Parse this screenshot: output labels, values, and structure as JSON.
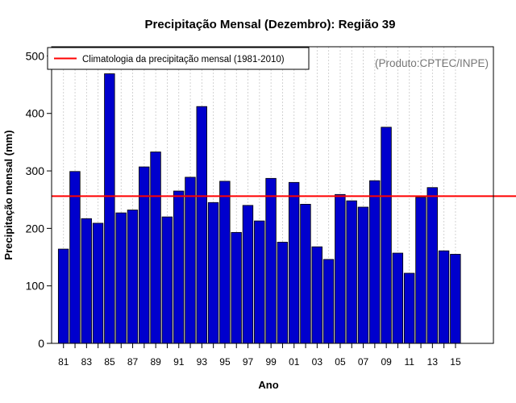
{
  "chart_data": {
    "type": "bar",
    "title": "Precipitação Mensal (Dezembro): Região 39",
    "xlabel": "Ano",
    "ylabel": "Precipitação mensal (mm)",
    "ylim": [
      0,
      500
    ],
    "y_ticks": [
      0,
      100,
      200,
      300,
      400,
      500
    ],
    "categories": [
      "81",
      "82",
      "83",
      "84",
      "85",
      "86",
      "87",
      "88",
      "89",
      "90",
      "91",
      "92",
      "93",
      "94",
      "95",
      "96",
      "97",
      "98",
      "99",
      "00",
      "01",
      "02",
      "03",
      "04",
      "05",
      "06",
      "07",
      "08",
      "09",
      "10",
      "11",
      "12",
      "13",
      "14",
      "15"
    ],
    "x_tick_labels": [
      "81",
      "83",
      "85",
      "87",
      "89",
      "91",
      "93",
      "95",
      "97",
      "99",
      "01",
      "03",
      "05",
      "07",
      "09",
      "11",
      "13",
      "15"
    ],
    "values": [
      164,
      299,
      217,
      209,
      469,
      227,
      232,
      307,
      333,
      220,
      265,
      289,
      412,
      245,
      282,
      193,
      240,
      213,
      287,
      176,
      280,
      242,
      168,
      146,
      259,
      248,
      237,
      283,
      376,
      157,
      122,
      254,
      271,
      161,
      155
    ],
    "climatology": 256,
    "legend": {
      "entries": [
        "Climatologia da precipitação mensal (1981-2010)"
      ],
      "position": "top-left"
    },
    "annotation": "(Produto:CPTEC/INPE)",
    "grid": "vertical-dashed",
    "colors": {
      "bar": "#0000cd",
      "bar_stroke": "#000000",
      "climatology": "#ff0000",
      "grid": "#c8c8c8",
      "annotation": "#777777"
    }
  }
}
